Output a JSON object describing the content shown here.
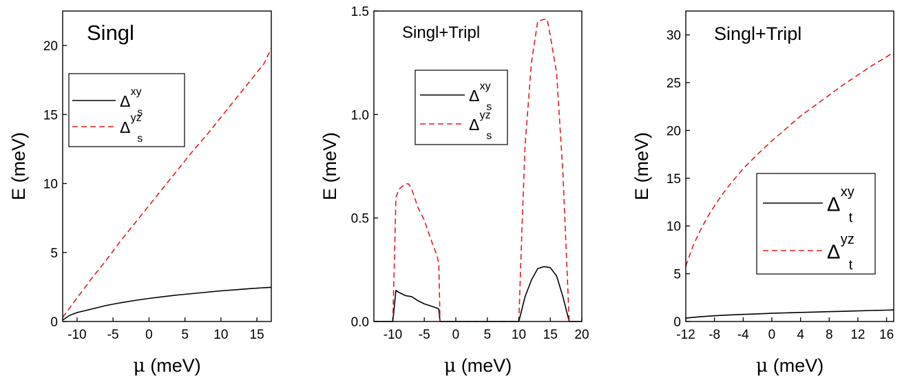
{
  "chart_data": [
    {
      "type": "line",
      "title": "Singl",
      "xlabel_symbol": "μ",
      "xlabel_text": " (meV)",
      "ylabel_symbol": "E",
      "ylabel_text": " (meV)",
      "xlim": [
        -12,
        17
      ],
      "ylim": [
        0,
        22.5
      ],
      "xticks": [
        -10,
        -5,
        0,
        5,
        10,
        15
      ],
      "xtick_labels": [
        "-10",
        "-5",
        "0",
        "5",
        "10",
        "15"
      ],
      "yticks": [
        0,
        5,
        10,
        15,
        20
      ],
      "ytick_labels": [
        "0",
        "5",
        "10",
        "15",
        "20"
      ],
      "legend_position": "middle-left",
      "series": [
        {
          "name_base": "Δ",
          "name_sup": "xy",
          "name_sub": "s",
          "style": "solid",
          "color": "#000000",
          "x": [
            -12,
            -11,
            -10,
            -8,
            -6,
            -4,
            -2,
            0,
            2,
            4,
            6,
            8,
            10,
            12,
            14,
            16,
            17
          ],
          "y": [
            0.1,
            0.45,
            0.65,
            0.9,
            1.15,
            1.35,
            1.52,
            1.67,
            1.8,
            1.92,
            2.02,
            2.12,
            2.22,
            2.3,
            2.38,
            2.45,
            2.48
          ]
        },
        {
          "name_base": "Δ",
          "name_sup": "yz",
          "name_sub": "s",
          "style": "dashed",
          "color": "#e41a1c",
          "x": [
            -12,
            -10,
            -8,
            -6,
            -4,
            -2,
            0,
            2,
            4,
            6,
            8,
            10,
            12,
            14,
            16,
            17
          ],
          "y": [
            0.3,
            1.7,
            3.1,
            4.4,
            5.8,
            7.1,
            8.4,
            9.7,
            11.0,
            12.3,
            13.5,
            14.8,
            16.1,
            17.4,
            18.7,
            19.8
          ]
        }
      ]
    },
    {
      "type": "line",
      "title": "Singl+Tripl",
      "xlabel_symbol": "μ",
      "xlabel_text": " (meV)",
      "ylabel_symbol": "E",
      "ylabel_text": " (meV)",
      "xlim": [
        -13,
        20
      ],
      "ylim": [
        0,
        1.5
      ],
      "xticks": [
        -10,
        -5,
        0,
        5,
        10,
        15,
        20
      ],
      "xtick_labels": [
        "-10",
        "-5",
        "0",
        "5",
        "10",
        "15",
        "20"
      ],
      "yticks": [
        0,
        0.5,
        1.0,
        1.5
      ],
      "ytick_labels": [
        "0.0",
        "0.5",
        "1.0",
        "1.5"
      ],
      "legend_position": "top-center",
      "series": [
        {
          "name_base": "Δ",
          "name_sup": "xy",
          "name_sub": "s",
          "style": "solid",
          "color": "#000000",
          "x": [
            -13,
            -10,
            -9.5,
            -9,
            -8,
            -7,
            -6,
            -5,
            -4,
            -3,
            -2.7,
            -2.5,
            0,
            5,
            10,
            11,
            12,
            13,
            14,
            15,
            16,
            17,
            18,
            20
          ],
          "y": [
            0,
            0,
            0.15,
            0.14,
            0.125,
            0.12,
            0.1,
            0.085,
            0.075,
            0.065,
            0.06,
            0,
            0,
            0,
            0,
            0.12,
            0.2,
            0.255,
            0.265,
            0.26,
            0.22,
            0.12,
            0,
            0
          ]
        },
        {
          "name_base": "Δ",
          "name_sup": "yz",
          "name_sub": "s",
          "style": "dashed",
          "color": "#e41a1c",
          "x": [
            -13,
            -10,
            -9.7,
            -9.5,
            -9,
            -8,
            -7.5,
            -7,
            -6,
            -5,
            -4,
            -3,
            -2.7,
            -2.5,
            0,
            5,
            10,
            10.5,
            11,
            12,
            13,
            14,
            14.5,
            15,
            16,
            17,
            18,
            20
          ],
          "y": [
            0,
            0,
            0.35,
            0.6,
            0.64,
            0.665,
            0.665,
            0.64,
            0.55,
            0.49,
            0.4,
            0.32,
            0.28,
            0,
            0,
            0,
            0,
            0.45,
            0.85,
            1.25,
            1.45,
            1.46,
            1.46,
            1.38,
            1.2,
            0.72,
            0,
            0
          ]
        }
      ]
    },
    {
      "type": "line",
      "title": "Singl+Tripl",
      "xlabel_symbol": "μ",
      "xlabel_text": " (meV)",
      "ylabel_symbol": "E",
      "ylabel_text": " (meV)",
      "xlim": [
        -12,
        17
      ],
      "ylim": [
        0,
        32.5
      ],
      "xticks": [
        -12,
        -8,
        -4,
        0,
        4,
        8,
        12,
        16
      ],
      "xtick_labels": [
        "-12",
        "-8",
        "-4",
        "0",
        "4",
        "8",
        "12",
        "16"
      ],
      "yticks": [
        0,
        5,
        10,
        15,
        20,
        25,
        30
      ],
      "ytick_labels": [
        "0",
        "5",
        "10",
        "15",
        "20",
        "25",
        "30"
      ],
      "legend_position": "bottom-right",
      "series": [
        {
          "name_base": "Δ",
          "name_sup": "xy",
          "name_sub": "t",
          "style": "solid",
          "color": "#000000",
          "x": [
            -12,
            -10,
            -8,
            -6,
            -4,
            -2,
            0,
            2,
            4,
            6,
            8,
            10,
            12,
            14,
            16,
            17
          ],
          "y": [
            0.35,
            0.5,
            0.6,
            0.68,
            0.74,
            0.8,
            0.86,
            0.9,
            0.95,
            0.99,
            1.03,
            1.07,
            1.11,
            1.15,
            1.19,
            1.21
          ]
        },
        {
          "name_base": "Δ",
          "name_sup": "yz",
          "name_sub": "t",
          "style": "dashed",
          "color": "#e41a1c",
          "x": [
            -12,
            -11,
            -10,
            -9,
            -8,
            -7,
            -6,
            -4,
            -2,
            0,
            2,
            4,
            6,
            8,
            10,
            12,
            14,
            16,
            17
          ],
          "y": [
            5.8,
            7.9,
            9.5,
            10.9,
            12.1,
            13.2,
            14.2,
            16.0,
            17.5,
            18.9,
            20.2,
            21.5,
            22.6,
            23.7,
            24.8,
            25.8,
            26.8,
            27.7,
            28.2
          ]
        }
      ]
    }
  ]
}
